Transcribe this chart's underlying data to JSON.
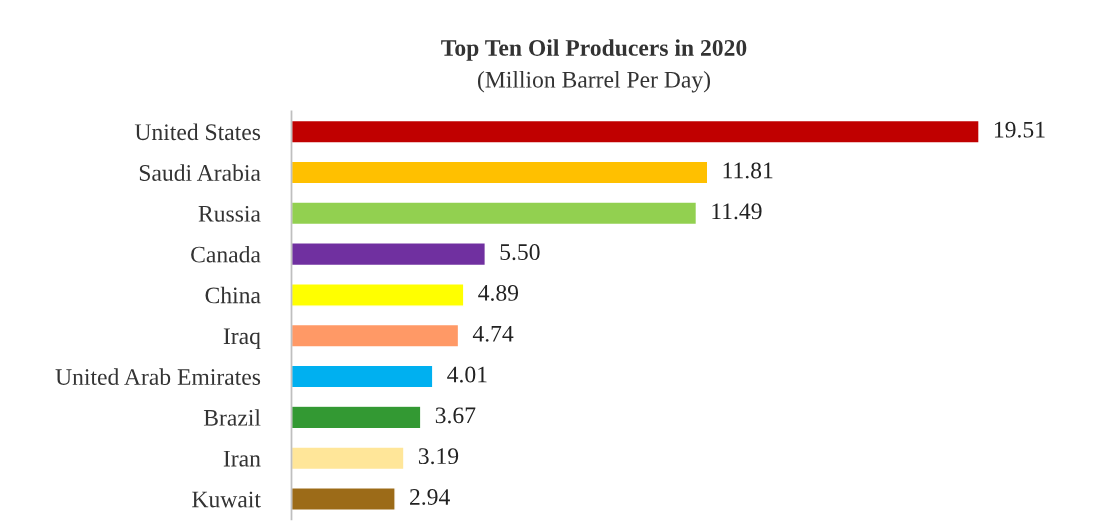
{
  "chart_data": {
    "type": "bar",
    "orientation": "horizontal",
    "title": "Top Ten Oil Producers in 2020",
    "subtitle": "(Million Barrel Per Day)",
    "categories": [
      "United States",
      "Saudi Arabia",
      "Russia",
      "Canada",
      "China",
      "Iraq",
      "United Arab Emirates",
      "Brazil",
      "Iran",
      "Kuwait"
    ],
    "values": [
      19.51,
      11.81,
      11.49,
      5.5,
      4.89,
      4.74,
      4.01,
      3.67,
      3.19,
      2.94
    ],
    "value_labels": [
      "19.51",
      "11.81",
      "11.49",
      "5.50",
      "4.89",
      "4.74",
      "4.01",
      "3.67",
      "3.19",
      "2.94"
    ],
    "colors": [
      "#c00000",
      "#ffc000",
      "#92d050",
      "#7030a0",
      "#ffff00",
      "#ff9966",
      "#00b0f0",
      "#339933",
      "#ffe699",
      "#9c6b18"
    ]
  }
}
